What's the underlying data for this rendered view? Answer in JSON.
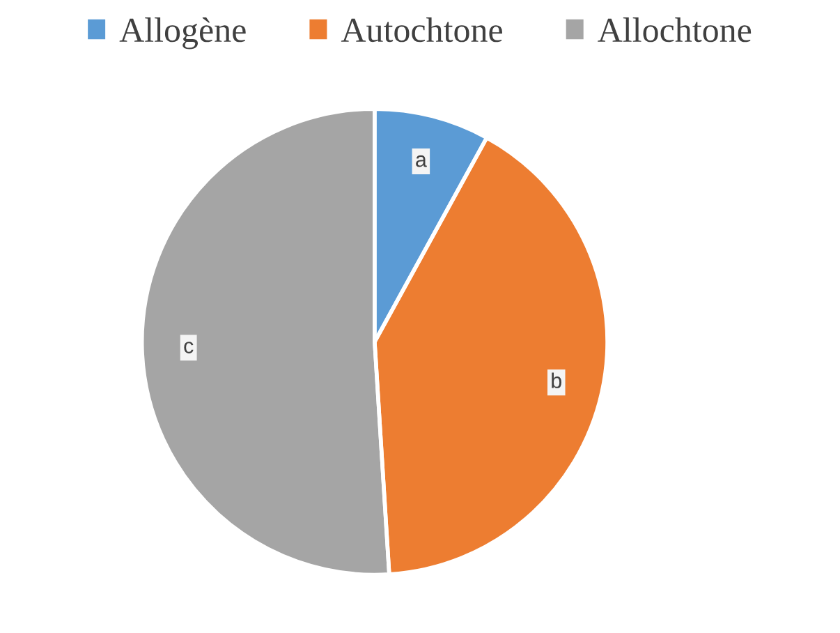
{
  "chart_data": {
    "type": "pie",
    "categories": [
      "Allogène",
      "Autochtone",
      "Allochtone"
    ],
    "values": [
      8,
      41,
      51
    ],
    "colors": [
      "#5b9bd5",
      "#ed7d31",
      "#a5a5a5"
    ],
    "value_labels": [
      "a",
      "b",
      "c"
    ],
    "legend": "top"
  }
}
